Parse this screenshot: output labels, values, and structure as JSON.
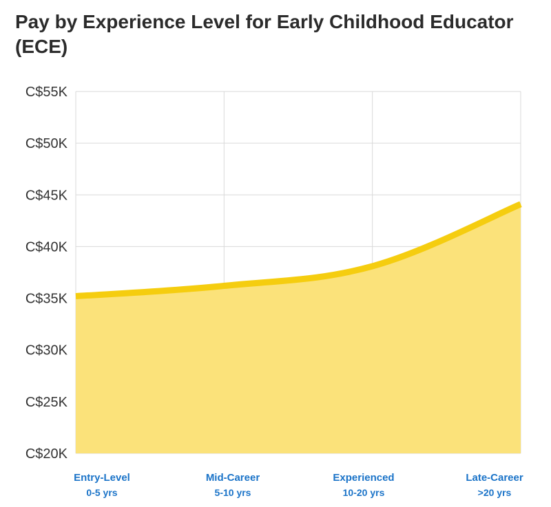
{
  "chart_data": {
    "type": "area",
    "title": "Pay by Experience Level for Early Childhood Educator (ECE)",
    "categories": [
      "Entry-Level",
      "Mid-Career",
      "Experienced",
      "Late-Career"
    ],
    "category_sublabels": [
      "0-5 yrs",
      "5-10 yrs",
      "10-20 yrs",
      ">20 yrs"
    ],
    "values": [
      35200,
      36200,
      38100,
      44100
    ],
    "ylim": [
      20000,
      55000
    ],
    "yticks": [
      20000,
      25000,
      30000,
      35000,
      40000,
      45000,
      50000,
      55000
    ],
    "ytick_labels": [
      "C$20K",
      "C$25K",
      "C$30K",
      "C$35K",
      "C$40K",
      "C$45K",
      "C$50K",
      "C$55K"
    ],
    "grid": true,
    "colors": {
      "line": "#f5cd0f",
      "fill": "#fbe27a",
      "category_label": "#1a73c8",
      "grid": "#d9d9d9"
    }
  }
}
